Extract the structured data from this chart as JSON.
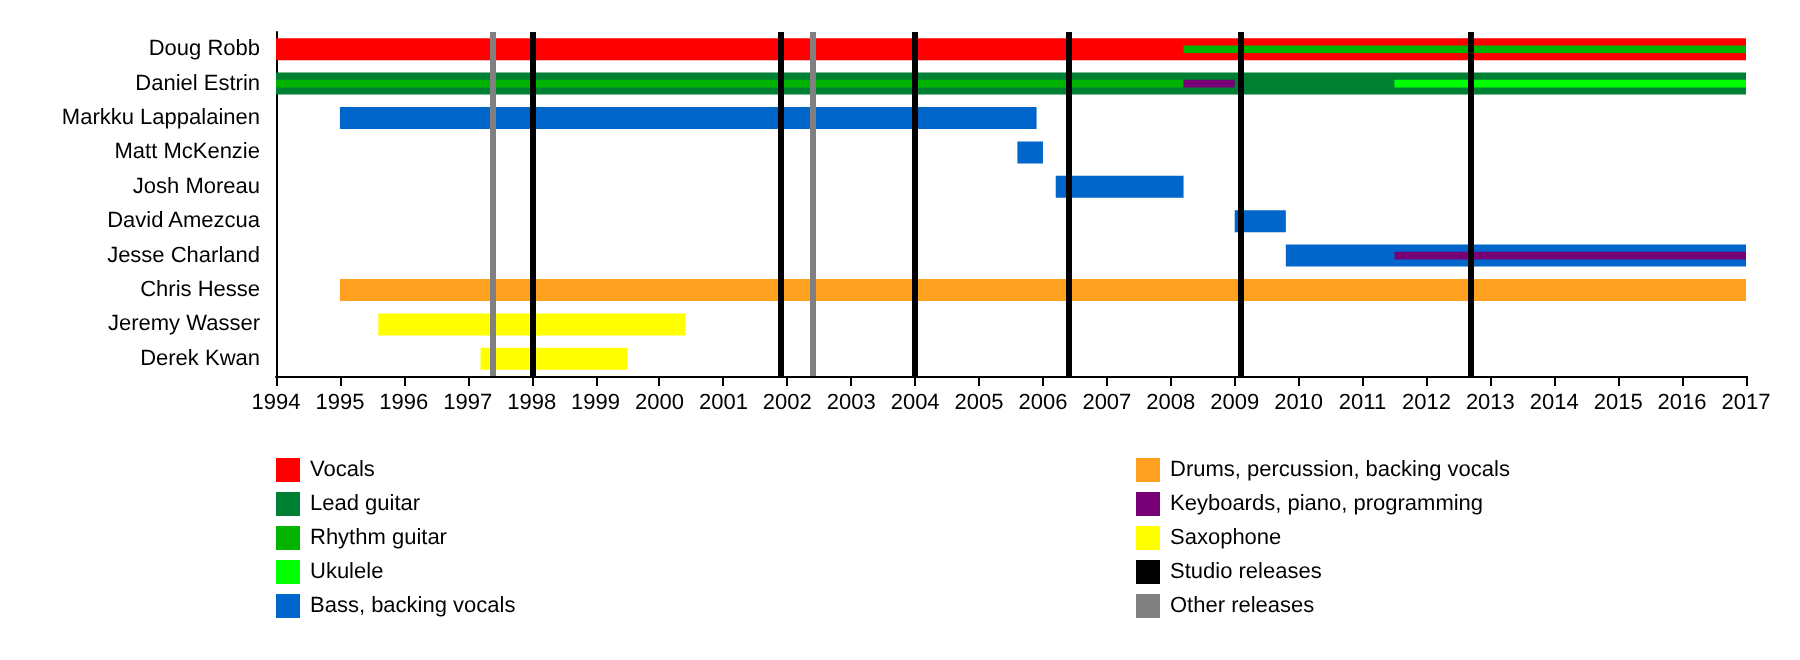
{
  "chart_data": {
    "type": "bar",
    "orientation": "horizontal",
    "categories": [
      "Doug Robb",
      "Daniel Estrin",
      "Markku Lappalainen",
      "Matt McKenzie",
      "Josh Moreau",
      "David Amezcua",
      "Jesse Charland",
      "Chris Hesse",
      "Jeremy Wasser",
      "Derek Kwan"
    ],
    "series": [
      {
        "name": "Vocals",
        "color": "#ff0000",
        "base": [
          1994,
          null,
          null,
          null,
          null,
          null,
          null,
          null,
          null,
          null
        ],
        "values": [
          23,
          null,
          null,
          null,
          null,
          null,
          null,
          null,
          null,
          null
        ]
      },
      {
        "name": "Lead guitar",
        "color": "#008033",
        "base": [
          null,
          1994,
          null,
          null,
          null,
          null,
          null,
          null,
          null,
          null
        ],
        "values": [
          null,
          23,
          null,
          null,
          null,
          null,
          null,
          null,
          null,
          null
        ]
      },
      {
        "name": "Rhythm guitar",
        "color": "#00b300",
        "base": [
          2008.2,
          1994,
          null,
          null,
          null,
          null,
          null,
          null,
          null,
          null
        ],
        "values": [
          8.8,
          14.2,
          null,
          null,
          null,
          null,
          null,
          null,
          null,
          null
        ]
      },
      {
        "name": "Ukulele",
        "color": "#00ff00",
        "base": [
          null,
          2011.5,
          null,
          null,
          null,
          null,
          null,
          null,
          null,
          null
        ],
        "values": [
          null,
          5.5,
          null,
          null,
          null,
          null,
          null,
          null,
          null,
          null
        ]
      },
      {
        "name": "Bass, backing vocals",
        "color": "#0066cc",
        "base": [
          null,
          null,
          1995,
          2005.6,
          2006.2,
          2009,
          2009.8,
          null,
          null,
          null
        ],
        "values": [
          null,
          null,
          10.9,
          0.4,
          2,
          0.8,
          7.2,
          null,
          null,
          null
        ]
      },
      {
        "name": "Drums, percussion, backing vocals",
        "color": "#ffa020",
        "base": [
          null,
          null,
          null,
          null,
          null,
          null,
          null,
          1995,
          null,
          null
        ],
        "values": [
          null,
          null,
          null,
          null,
          null,
          null,
          null,
          22,
          null,
          null
        ]
      },
      {
        "name": "Keyboards, piano, programming",
        "color": "#770077",
        "base": [
          null,
          2008.2,
          null,
          null,
          null,
          null,
          2011.5,
          null,
          null,
          null
        ],
        "values": [
          null,
          0.8,
          null,
          null,
          null,
          null,
          5.5,
          null,
          null,
          null
        ]
      },
      {
        "name": "Saxophone",
        "color": "#ffff00",
        "base": [
          null,
          null,
          null,
          null,
          null,
          null,
          null,
          null,
          1995.6,
          1997.2
        ],
        "values": [
          null,
          null,
          null,
          null,
          null,
          null,
          null,
          null,
          4.8,
          2.3
        ]
      }
    ],
    "ref_lines": [
      {
        "axis": "x",
        "value": 1998,
        "label": "Studio releases",
        "color": "#000000"
      },
      {
        "axis": "x",
        "value": 2001.9,
        "color": "#000000"
      },
      {
        "axis": "x",
        "value": 2004,
        "color": "#000000"
      },
      {
        "axis": "x",
        "value": 2006.4,
        "color": "#000000"
      },
      {
        "axis": "x",
        "value": 2009.1,
        "color": "#000000"
      },
      {
        "axis": "x",
        "value": 2012.7,
        "color": "#000000"
      },
      {
        "axis": "x",
        "value": 1997.4,
        "label": "Other releases",
        "color": "#808080"
      },
      {
        "axis": "x",
        "value": 2002.4,
        "color": "#808080"
      }
    ],
    "xlim": [
      1994,
      2017
    ],
    "xticks": [
      1994,
      1995,
      1996,
      1997,
      1998,
      1999,
      2000,
      2001,
      2002,
      2003,
      2004,
      2005,
      2006,
      2007,
      2008,
      2009,
      2010,
      2011,
      2012,
      2013,
      2014,
      2015,
      2016,
      2017
    ],
    "grid": false,
    "legend": "bottom"
  }
}
